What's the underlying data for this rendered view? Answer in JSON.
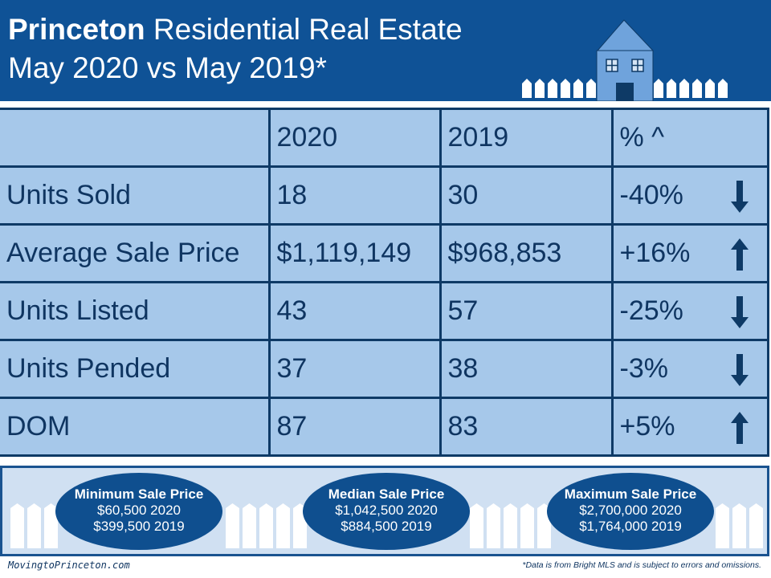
{
  "header": {
    "title_bold": "Princeton",
    "title_rest": " Residential Real Estate",
    "subtitle": "May 2020 vs May 2019*"
  },
  "colors": {
    "banner": "#0f5296",
    "cell": "#a6c8ea",
    "border": "#0e3a66",
    "text": "#0f3561",
    "band": "#d0e0f2",
    "ellipse": "#0f4f8f"
  },
  "table": {
    "headers": [
      "",
      "2020",
      "2019",
      "% ^"
    ],
    "rows": [
      {
        "label": "Units Sold",
        "v2020": "18",
        "v2019": "30",
        "pct": "-40%",
        "trend": "down"
      },
      {
        "label": "Average Sale Price",
        "v2020": "$1,119,149",
        "v2019": "$968,853",
        "pct": "+16%",
        "trend": "up"
      },
      {
        "label": "Units Listed",
        "v2020": "43",
        "v2019": "57",
        "pct": "-25%",
        "trend": "down"
      },
      {
        "label": "Units Pended",
        "v2020": "37",
        "v2019": "38",
        "pct": "-3%",
        "trend": "down"
      },
      {
        "label": "DOM",
        "v2020": "87",
        "v2019": "83",
        "pct": "+5%",
        "trend": "up"
      }
    ]
  },
  "summary": [
    {
      "title": "Minimum Sale Price",
      "line1": "$60,500 2020",
      "line2": "$399,500 2019"
    },
    {
      "title": "Median Sale Price",
      "line1": "$1,042,500 2020",
      "line2": "$884,500 2019"
    },
    {
      "title": "Maximum Sale Price",
      "line1": "$2,700,000 2020",
      "line2": "$1,764,000 2019"
    }
  ],
  "footer": {
    "site": "MovingtoPrinceton.com",
    "disclaimer": "*Data is from Bright MLS and is subject to errors and omissions."
  }
}
